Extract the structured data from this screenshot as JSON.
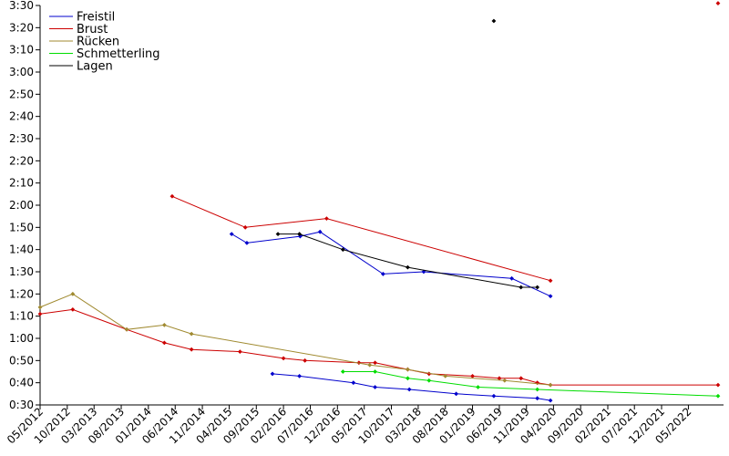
{
  "chart_data": {
    "type": "line",
    "title": "",
    "xlabel": "",
    "ylabel": "",
    "grid": false,
    "legend_position": "top-left",
    "ylim": [
      "0:30",
      "3:30"
    ],
    "y_ticks": [
      "0:30",
      "0:40",
      "0:50",
      "1:00",
      "1:10",
      "1:20",
      "1:30",
      "1:40",
      "1:50",
      "2:00",
      "2:10",
      "2:20",
      "2:30",
      "2:40",
      "2:50",
      "3:00",
      "3:10",
      "3:20",
      "3:30"
    ],
    "x_ticks": [
      "05/2012",
      "10/2012",
      "03/2013",
      "08/2013",
      "01/2014",
      "06/2014",
      "11/2014",
      "04/2015",
      "09/2015",
      "02/2016",
      "07/2016",
      "12/2016",
      "05/2017",
      "10/2017",
      "03/2018",
      "08/2018",
      "01/2019",
      "06/2019",
      "11/2019",
      "04/2020",
      "09/2020",
      "02/2021",
      "07/2021",
      "12/2021",
      "05/2022"
    ],
    "xlim": [
      "2012-05-01",
      "2022-11-15"
    ],
    "series": [
      {
        "name": "Freistil",
        "color": "#0000cc",
        "points": [
          {
            "x": "2015-04-15",
            "y": "1:47"
          },
          {
            "x": "2015-07-10",
            "y": "1:43"
          },
          {
            "x": "2016-05-05",
            "y": "1:46"
          },
          {
            "x": "2016-08-25",
            "y": "1:48"
          },
          {
            "x": "2017-08-15",
            "y": "1:29"
          },
          {
            "x": "2018-04-01",
            "y": "1:30"
          },
          {
            "x": "2019-08-10",
            "y": "1:27"
          },
          {
            "x": "2020-03-15",
            "y": "1:19"
          }
        ]
      },
      {
        "name": "Freistil",
        "color": "#0000cc",
        "points": [
          {
            "x": "2015-12-01",
            "y": "0:44"
          },
          {
            "x": "2016-05-01",
            "y": "0:43"
          },
          {
            "x": "2017-03-01",
            "y": "0:40"
          },
          {
            "x": "2017-07-01",
            "y": "0:38"
          },
          {
            "x": "2018-01-10",
            "y": "0:37"
          },
          {
            "x": "2018-10-01",
            "y": "0:35"
          },
          {
            "x": "2019-05-01",
            "y": "0:34"
          },
          {
            "x": "2020-01-01",
            "y": "0:33"
          },
          {
            "x": "2020-03-15",
            "y": "0:32"
          }
        ]
      },
      {
        "name": "Brust",
        "color": "#cc0000",
        "points": [
          {
            "x": "2014-05-15",
            "y": "2:04"
          },
          {
            "x": "2015-07-01",
            "y": "1:50"
          },
          {
            "x": "2016-10-01",
            "y": "1:54"
          },
          {
            "x": "2020-03-15",
            "y": "1:26"
          }
        ]
      },
      {
        "name": "Brust",
        "color": "#cc0000",
        "points": [
          {
            "x": "2012-05-01",
            "y": "1:11"
          },
          {
            "x": "2012-11-01",
            "y": "1:13"
          },
          {
            "x": "2013-09-01",
            "y": "1:04"
          },
          {
            "x": "2014-04-01",
            "y": "0:58"
          },
          {
            "x": "2014-09-01",
            "y": "0:55"
          },
          {
            "x": "2015-06-01",
            "y": "0:54"
          },
          {
            "x": "2016-02-01",
            "y": "0:51"
          },
          {
            "x": "2016-06-01",
            "y": "0:50"
          },
          {
            "x": "2017-04-01",
            "y": "0:49"
          },
          {
            "x": "2017-07-01",
            "y": "0:49"
          },
          {
            "x": "2018-01-01",
            "y": "0:46"
          },
          {
            "x": "2018-05-01",
            "y": "0:44"
          },
          {
            "x": "2019-01-01",
            "y": "0:43"
          },
          {
            "x": "2019-06-01",
            "y": "0:42"
          },
          {
            "x": "2019-10-01",
            "y": "0:42"
          },
          {
            "x": "2020-01-01",
            "y": "0:40"
          },
          {
            "x": "2020-03-15",
            "y": "0:39"
          },
          {
            "x": "2022-10-15",
            "y": "0:39"
          }
        ]
      },
      {
        "name": "Brust",
        "color": "#cc0000",
        "points": [
          {
            "x": "2022-10-15",
            "y": "3:31"
          }
        ]
      },
      {
        "name": "Rücken",
        "color": "#a08a30",
        "points": [
          {
            "x": "2012-05-01",
            "y": "1:14"
          },
          {
            "x": "2012-11-01",
            "y": "1:20"
          },
          {
            "x": "2013-09-01",
            "y": "1:04"
          },
          {
            "x": "2014-04-01",
            "y": "1:06"
          },
          {
            "x": "2014-09-01",
            "y": "1:02"
          },
          {
            "x": "2017-06-01",
            "y": "0:48"
          },
          {
            "x": "2018-01-01",
            "y": "0:46"
          },
          {
            "x": "2018-08-01",
            "y": "0:43"
          },
          {
            "x": "2019-07-01",
            "y": "0:41"
          },
          {
            "x": "2020-03-15",
            "y": "0:39"
          }
        ]
      },
      {
        "name": "Schmetterling",
        "color": "#00dd00",
        "points": [
          {
            "x": "2017-01-01",
            "y": "0:45"
          },
          {
            "x": "2017-07-01",
            "y": "0:45"
          },
          {
            "x": "2018-01-01",
            "y": "0:42"
          },
          {
            "x": "2018-05-01",
            "y": "0:41"
          },
          {
            "x": "2019-02-01",
            "y": "0:38"
          },
          {
            "x": "2020-01-01",
            "y": "0:37"
          },
          {
            "x": "2022-10-15",
            "y": "0:34"
          }
        ]
      },
      {
        "name": "Lagen",
        "color": "#000000",
        "points": [
          {
            "x": "2016-01-01",
            "y": "1:47"
          },
          {
            "x": "2016-05-01",
            "y": "1:47"
          },
          {
            "x": "2017-01-01",
            "y": "1:40"
          },
          {
            "x": "2018-01-01",
            "y": "1:32"
          },
          {
            "x": "2019-10-01",
            "y": "1:23"
          },
          {
            "x": "2020-01-01",
            "y": "1:23"
          }
        ]
      },
      {
        "name": "Lagen",
        "color": "#000000",
        "points": [
          {
            "x": "2019-05-01",
            "y": "3:23"
          }
        ]
      }
    ]
  },
  "legend": [
    {
      "label": "Freistil",
      "color": "#0000cc"
    },
    {
      "label": "Brust",
      "color": "#cc0000"
    },
    {
      "label": "Rücken",
      "color": "#a08a30"
    },
    {
      "label": "Schmetterling",
      "color": "#00dd00"
    },
    {
      "label": "Lagen",
      "color": "#000000"
    }
  ]
}
